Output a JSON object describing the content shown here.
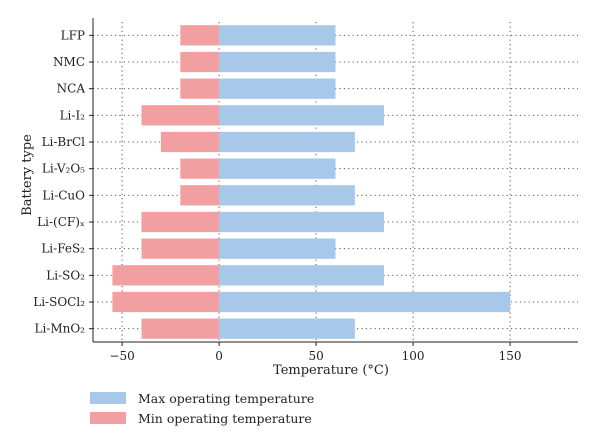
{
  "chart_data": {
    "type": "bar",
    "orientation": "horizontal",
    "categories": [
      "LFP",
      "NMC",
      "NCA",
      "Li-I₂",
      "Li-BrCl",
      "Li-V₂O₅",
      "Li-CuO",
      "Li-(CF)ₓ",
      "Li-FeS₂",
      "Li-SO₂",
      "Li-SOCl₂",
      "Li-MnO₂"
    ],
    "series": [
      {
        "name": "Max operating temperature",
        "color": "#a7c8e9",
        "values": [
          60,
          60,
          60,
          85,
          70,
          60,
          70,
          85,
          60,
          85,
          150,
          70
        ]
      },
      {
        "name": "Min operating temperature",
        "color": "#f29fa2",
        "values": [
          -20,
          -20,
          -20,
          -40,
          -30,
          -20,
          -20,
          -40,
          -40,
          -55,
          -55,
          -40
        ]
      }
    ],
    "xlabel": "Temperature (°C)",
    "ylabel": "Battery type",
    "xlim": [
      -65,
      185
    ],
    "xticks": [
      -50,
      0,
      50,
      100,
      150
    ],
    "grid": "dotted vertical",
    "legend_position": "bottom-left"
  }
}
